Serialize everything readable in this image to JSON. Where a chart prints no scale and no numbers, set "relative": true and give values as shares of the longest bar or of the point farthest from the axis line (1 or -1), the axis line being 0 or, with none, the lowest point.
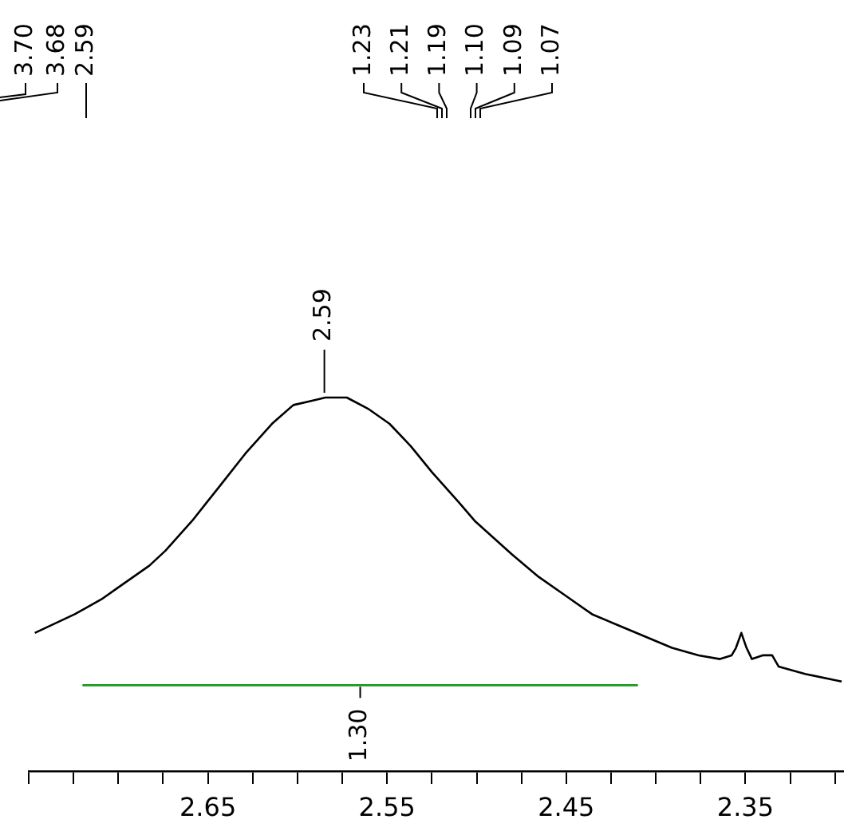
{
  "chart_data": {
    "type": "line",
    "relative": true,
    "tick_labels": "x",
    "xlim": [
      2.75,
      2.295
    ],
    "xticks": [
      {
        "value": 2.3,
        "label": null
      },
      {
        "value": 2.325,
        "label": null
      },
      2.35,
      {
        "value": 2.375,
        "label": null
      },
      {
        "value": 2.4,
        "label": null
      },
      {
        "value": 2.425,
        "label": null
      },
      2.45,
      {
        "value": 2.475,
        "label": null
      },
      {
        "value": 2.5,
        "label": null
      },
      {
        "value": 2.525,
        "label": null
      },
      2.55,
      {
        "value": 2.575,
        "label": null
      },
      {
        "value": 2.6,
        "label": null
      },
      {
        "value": 2.625,
        "label": null
      },
      2.65,
      {
        "value": 2.675,
        "label": null
      },
      {
        "value": 2.7,
        "label": null
      },
      {
        "value": 2.725,
        "label": null
      },
      {
        "value": 2.75,
        "label": null
      }
    ],
    "x": [
      2.7466,
      2.7243,
      2.7094,
      2.7005,
      2.6827,
      2.6737,
      2.6588,
      2.6439,
      2.6291,
      2.6142,
      2.6023,
      2.5933,
      2.5844,
      2.5725,
      2.5606,
      2.5487,
      2.5368,
      2.5249,
      2.51,
      2.5011,
      2.4803,
      2.4654,
      2.4505,
      2.4356,
      2.4208,
      2.4059,
      2.391,
      2.3761,
      2.3642,
      2.3577,
      2.3553,
      2.3523,
      2.3494,
      2.3464,
      2.3404,
      2.3351,
      2.3315,
      2.3167,
      2.2963
    ],
    "series": [
      {
        "color": "#000000",
        "values": [
          0.37,
          0.42,
          0.46,
          0.49,
          0.55,
          0.59,
          0.67,
          0.76,
          0.85,
          0.93,
          0.98,
          0.99,
          1,
          1,
          0.97,
          0.93,
          0.87,
          0.8,
          0.72,
          0.67,
          0.58,
          0.52,
          0.47,
          0.42,
          0.39,
          0.36,
          0.33,
          0.31,
          0.3,
          0.31,
          0.33,
          0.37,
          0.33,
          0.3,
          0.31,
          0.31,
          0.28,
          0.26,
          0.24
        ]
      },
      {
        "color": "#1a9a1a",
        "x": [
          2.72,
          2.41
        ],
        "values": [
          0.23,
          0.23
        ]
      }
    ],
    "annotations": [
      "3.70",
      "3.68",
      "2.59",
      "1.23",
      "1.21",
      "1.19",
      "1.10",
      "1.09",
      "1.07",
      {
        "text": "2.59",
        "x": 2.585,
        "y": 1
      },
      {
        "text": "1.30",
        "x": 2.565,
        "y": 0.23
      }
    ]
  }
}
